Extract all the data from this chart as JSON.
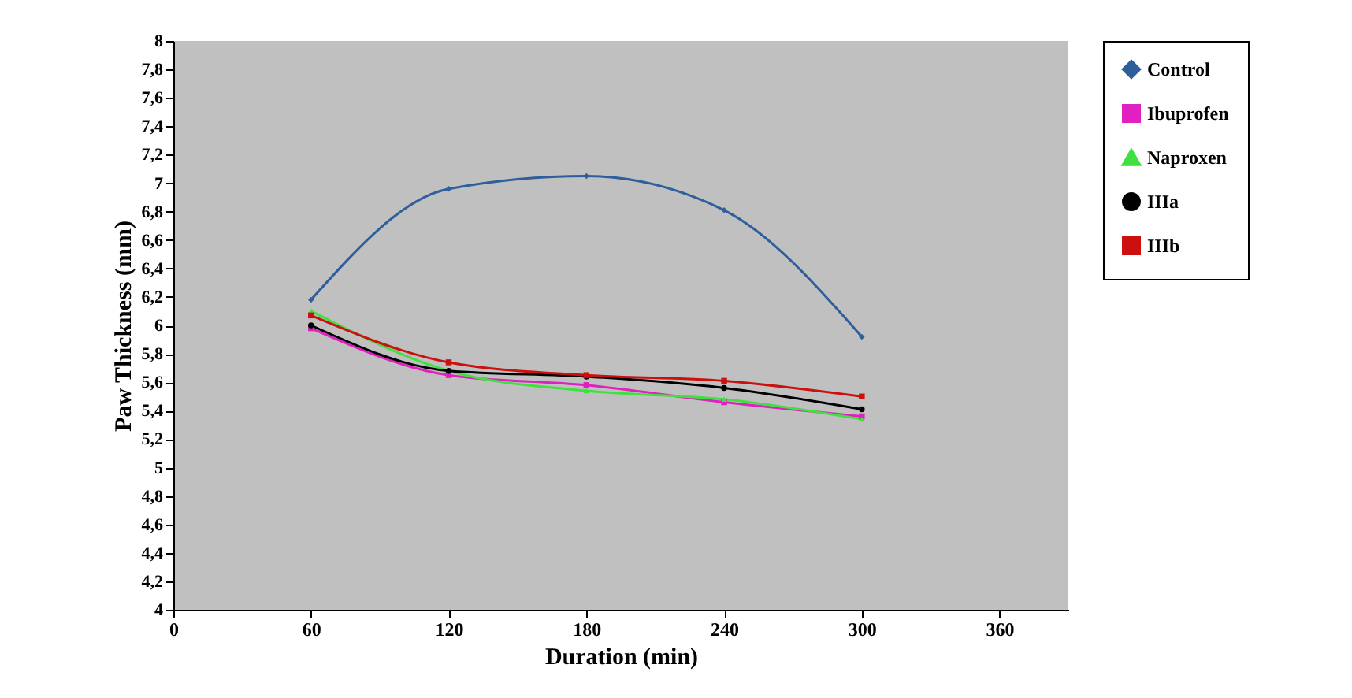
{
  "chart_data": {
    "type": "line",
    "xlabel": "Duration  (min)",
    "ylabel": "Paw Thickness (mm)",
    "x": [
      60,
      120,
      180,
      240,
      300
    ],
    "series": [
      {
        "name": "Control",
        "color": "#2f5f9a",
        "marker": "diamond",
        "values": [
          6.18,
          6.96,
          7.05,
          6.81,
          5.92
        ]
      },
      {
        "name": "Ibuprofen",
        "color": "#e020c0",
        "marker": "square",
        "values": [
          5.98,
          5.65,
          5.58,
          5.46,
          5.36
        ]
      },
      {
        "name": "Naproxen",
        "color": "#40e040",
        "marker": "triangle",
        "values": [
          6.1,
          5.68,
          5.54,
          5.48,
          5.34
        ]
      },
      {
        "name": "IIIa",
        "color": "#000000",
        "marker": "circle",
        "values": [
          6.0,
          5.68,
          5.64,
          5.56,
          5.41
        ]
      },
      {
        "name": "IIIb",
        "color": "#cc1010",
        "marker": "square",
        "values": [
          6.07,
          5.74,
          5.65,
          5.61,
          5.5
        ]
      }
    ],
    "xlim": [
      0,
      390
    ],
    "xticks": [
      0,
      60,
      120,
      180,
      240,
      300,
      360
    ],
    "ylim": [
      4,
      8
    ],
    "yticks": [
      4,
      {
        "value": 4.2,
        "label": "4,2"
      },
      {
        "value": 4.4,
        "label": "4,4"
      },
      {
        "value": 4.6,
        "label": "4,6"
      },
      {
        "value": 4.8,
        "label": "4,8"
      },
      5,
      {
        "value": 5.2,
        "label": "5,2"
      },
      {
        "value": 5.4,
        "label": "5,4"
      },
      {
        "value": 5.6,
        "label": "5,6"
      },
      {
        "value": 5.8,
        "label": "5,8"
      },
      6,
      {
        "value": 6.2,
        "label": "6,2"
      },
      {
        "value": 6.4,
        "label": "6,4"
      },
      {
        "value": 6.6,
        "label": "6,6"
      },
      {
        "value": 6.8,
        "label": "6,8"
      },
      7,
      {
        "value": 7.2,
        "label": "7,2"
      },
      {
        "value": 7.4,
        "label": "7,4"
      },
      {
        "value": 7.6,
        "label": "7,6"
      },
      {
        "value": 7.8,
        "label": "7,8"
      },
      8
    ],
    "grid": false,
    "legend": "right"
  }
}
